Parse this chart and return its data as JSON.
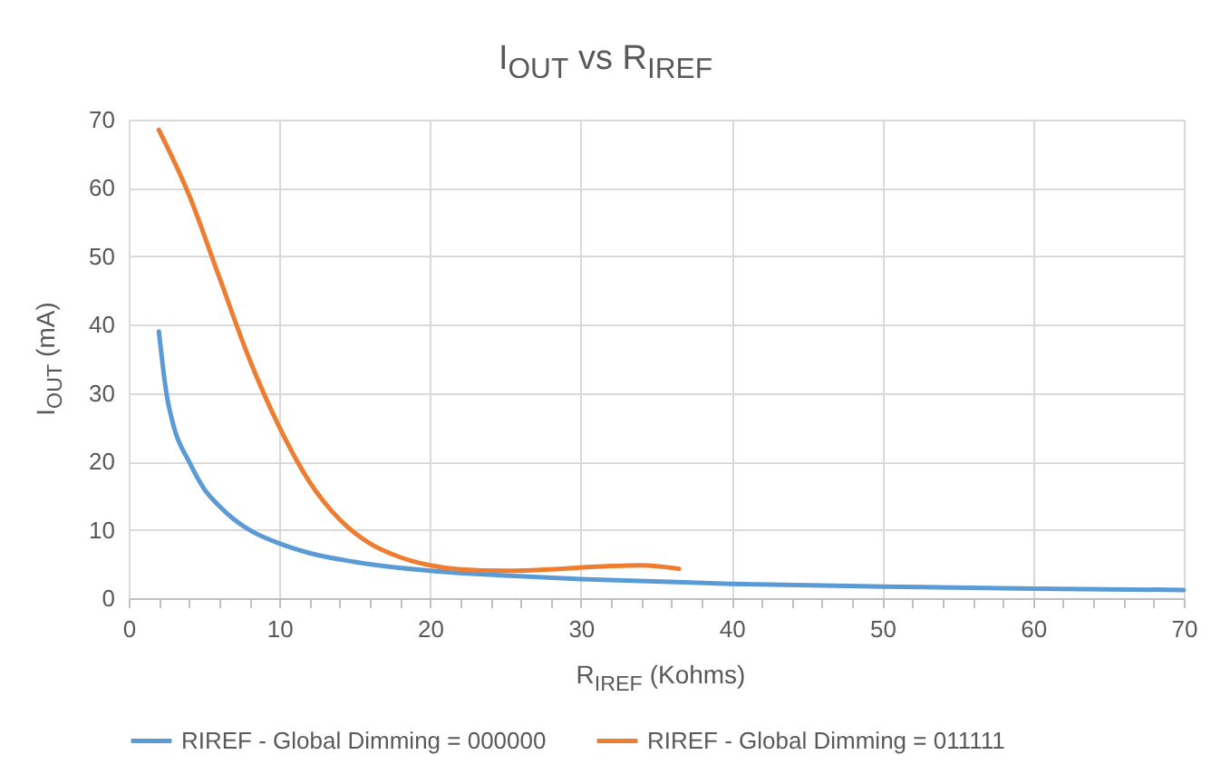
{
  "chart_data": {
    "type": "line",
    "title": "I$_{OUT}$ vs R$_{IREF}$",
    "xlabel": "R$_{IREF}$  (Kohms)",
    "ylabel": "I$_{OUT}$  (mA)",
    "series": [
      {
        "name": "RIREF - Global Dimming = 000000",
        "color": "#5b9bd5",
        "x": [
          2,
          2.5,
          3,
          4,
          5,
          6,
          7,
          8,
          10,
          12,
          15,
          20,
          25,
          30,
          40,
          50,
          60,
          70
        ],
        "values": [
          39,
          30,
          25,
          20,
          16,
          13.5,
          11.5,
          10,
          8,
          6.6,
          5.3,
          4,
          3.3,
          2.8,
          2.1,
          1.7,
          1.4,
          1.2
        ]
      },
      {
        "name": "RIREF - Global Dimming = 011111",
        "color": "#ed7d31",
        "x": [
          2,
          4,
          6,
          8,
          10,
          12,
          14,
          16,
          18,
          20,
          22,
          25,
          28,
          31,
          34,
          36.5
        ],
        "values": [
          68.5,
          59,
          47,
          35,
          25,
          17,
          11.5,
          8,
          6,
          4.8,
          4.2,
          4,
          4.2,
          4.6,
          4.8,
          4.3
        ]
      }
    ],
    "xlim": [
      0,
      70
    ],
    "ylim": [
      0,
      70
    ],
    "xticks": [
      0,
      {
        "value": 2,
        "label": null
      },
      {
        "value": 4,
        "label": null
      },
      {
        "value": 6,
        "label": null
      },
      {
        "value": 8,
        "label": null
      },
      10,
      {
        "value": 12,
        "label": null
      },
      {
        "value": 14,
        "label": null
      },
      {
        "value": 16,
        "label": null
      },
      {
        "value": 18,
        "label": null
      },
      20,
      {
        "value": 22,
        "label": null
      },
      {
        "value": 24,
        "label": null
      },
      {
        "value": 26,
        "label": null
      },
      {
        "value": 28,
        "label": null
      },
      30,
      {
        "value": 32,
        "label": null
      },
      {
        "value": 34,
        "label": null
      },
      {
        "value": 36,
        "label": null
      },
      {
        "value": 38,
        "label": null
      },
      40,
      {
        "value": 42,
        "label": null
      },
      {
        "value": 44,
        "label": null
      },
      {
        "value": 46,
        "label": null
      },
      {
        "value": 48,
        "label": null
      },
      50,
      {
        "value": 52,
        "label": null
      },
      {
        "value": 54,
        "label": null
      },
      {
        "value": 56,
        "label": null
      },
      {
        "value": 58,
        "label": null
      },
      60,
      {
        "value": 62,
        "label": null
      },
      {
        "value": 64,
        "label": null
      },
      {
        "value": 66,
        "label": null
      },
      {
        "value": 68,
        "label": null
      },
      70
    ],
    "yticks": [
      0,
      10,
      20,
      30,
      40,
      50,
      60,
      70
    ],
    "grid": true,
    "legend": "bottom",
    "marker": "none",
    "line_style": "solid"
  }
}
